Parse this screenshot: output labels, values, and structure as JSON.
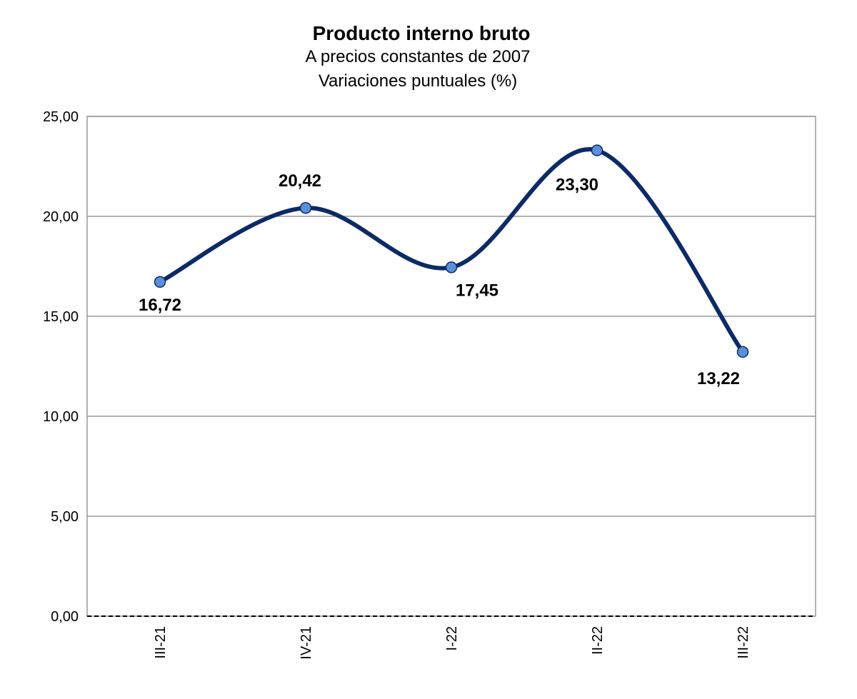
{
  "chart_data": {
    "type": "line",
    "title": "Producto interno bruto",
    "subtitle": [
      "A precios constantes de 2007",
      "Variaciones puntuales (%)"
    ],
    "categories": [
      "III-21",
      "IV-21",
      "I-22",
      "II-22",
      "III-22"
    ],
    "series": [
      {
        "name": "Producto interno bruto",
        "color": "#0c2a66",
        "marker_color": "#5b8fd9",
        "values": [
          16.72,
          20.42,
          17.45,
          23.3,
          13.22
        ],
        "value_labels": [
          "16,72",
          "20,42",
          "17,45",
          "23,30",
          "13,22"
        ]
      }
    ],
    "ylim": [
      0,
      25
    ],
    "yticks": [
      {
        "value": 0,
        "label": "0,00"
      },
      {
        "value": 5,
        "label": "5,00"
      },
      {
        "value": 10,
        "label": "10,00"
      },
      {
        "value": 15,
        "label": "15,00"
      },
      {
        "value": 20,
        "label": "20,00"
      },
      {
        "value": 25,
        "label": "25,00"
      }
    ],
    "grid": true,
    "smooth": true
  }
}
